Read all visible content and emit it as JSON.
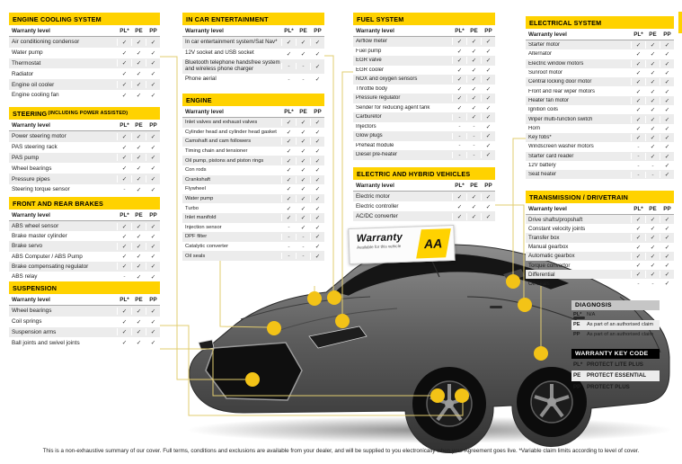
{
  "columns": {
    "label": "Warranty level",
    "cols": [
      "PL*",
      "PE",
      "PP"
    ]
  },
  "marks": {
    "y": "✓",
    "n": "-"
  },
  "colors": {
    "brand_yellow": "#FFD200",
    "dot_yellow": "#F3C317",
    "line_yellow": "#E2CC6F",
    "key_code_header_bg": "#000000",
    "diagnosis_header_bg": "#C6C6C6",
    "check_color": "#3A3A3A"
  },
  "tables": [
    {
      "id": "engine-cooling-system",
      "title": "ENGINE COOLING SYSTEM",
      "rows": [
        {
          "label": "Air conditioning condensor",
          "v": "yyy"
        },
        {
          "label": "Water pump",
          "v": "yyy"
        },
        {
          "label": "Thermostat",
          "v": "yyy"
        },
        {
          "label": "Radiator",
          "v": "yyy"
        },
        {
          "label": "Engine oil cooler",
          "v": "yyy"
        },
        {
          "label": "Engine cooling fan",
          "v": "yyy"
        }
      ]
    },
    {
      "id": "steering",
      "title": "STEERING",
      "suffix": "(INCLUDING POWER ASSISTED)",
      "rows": [
        {
          "label": "Power steering motor",
          "v": "yyy"
        },
        {
          "label": "PAS steering rack",
          "v": "yyy"
        },
        {
          "label": "PAS pump",
          "v": "yyy"
        },
        {
          "label": "Wheel bearings",
          "v": "yyy"
        },
        {
          "label": "Pressure pipes",
          "v": "yyy"
        },
        {
          "label": "Steering torque sensor",
          "v": "nyy"
        }
      ]
    },
    {
      "id": "front-and-rear-brakes",
      "title": "FRONT AND REAR BRAKES",
      "rows": [
        {
          "label": "ABS wheel sensor",
          "v": "yyy"
        },
        {
          "label": "Brake master cylinder",
          "v": "yyy"
        },
        {
          "label": "Brake servo",
          "v": "yyy"
        },
        {
          "label": "ABS Computer / ABS Pump",
          "v": "yyy"
        },
        {
          "label": "Brake compensating regulator",
          "v": "yyy"
        },
        {
          "label": "ABS relay",
          "v": "nyy"
        }
      ]
    },
    {
      "id": "suspension",
      "title": "SUSPENSION",
      "rows": [
        {
          "label": "Wheel bearings",
          "v": "yyy"
        },
        {
          "label": "Coil springs",
          "v": "yyy"
        },
        {
          "label": "Suspension arms",
          "v": "yyy"
        },
        {
          "label": "Ball joints and swivel joints",
          "v": "yyy"
        }
      ]
    },
    {
      "id": "in-car-entertainment",
      "title": "IN CAR ENTERTAINMENT",
      "rows": [
        {
          "label": "In car entertainment system/Sat Nav*",
          "v": "yyy"
        },
        {
          "label": "12V socket and USB socket",
          "v": "yyy"
        },
        {
          "label": "Bluetooth telephone handsfree system and wireless phone charger",
          "v": "nny"
        },
        {
          "label": "Phone aerial",
          "v": "nny"
        }
      ]
    },
    {
      "id": "engine",
      "title": "ENGINE",
      "rows": [
        {
          "label": "Inlet valves and exhaust valves",
          "v": "yyy"
        },
        {
          "label": "Cylinder head and cylinder head gasket",
          "v": "yyy"
        },
        {
          "label": "Camshaft and cam followers",
          "v": "yyy"
        },
        {
          "label": "Timing chain and tensioner",
          "v": "yyy"
        },
        {
          "label": "Oil pump, pistons and piston rings",
          "v": "yyy"
        },
        {
          "label": "Con rods",
          "v": "yyy"
        },
        {
          "label": "Crankshaft",
          "v": "yyy"
        },
        {
          "label": "Flywheel",
          "v": "yyy"
        },
        {
          "label": "Water pump",
          "v": "yyy"
        },
        {
          "label": "Turbo",
          "v": "yyy"
        },
        {
          "label": "Inlet manifold",
          "v": "yyy"
        },
        {
          "label": "Injection sensor",
          "v": "nyy"
        },
        {
          "label": "DPF filter",
          "v": "nny"
        },
        {
          "label": "Catalytic converter",
          "v": "nny"
        },
        {
          "label": "Oil seals",
          "v": "nny"
        }
      ]
    },
    {
      "id": "fuel-system",
      "title": "FUEL SYSTEM",
      "rows": [
        {
          "label": "Airflow meter",
          "v": "yyy"
        },
        {
          "label": "Fuel pump",
          "v": "yyy"
        },
        {
          "label": "EGR valve",
          "v": "yyy"
        },
        {
          "label": "EGR cooler",
          "v": "yyy"
        },
        {
          "label": "NOX and oxygen sensors",
          "v": "yyy"
        },
        {
          "label": "Throttle body",
          "v": "yyy"
        },
        {
          "label": "Pressure regulator",
          "v": "yyy"
        },
        {
          "label": "Sender for reducing agent tank",
          "v": "yyy"
        },
        {
          "label": "Carburetor",
          "v": "nyy"
        },
        {
          "label": "Injectors",
          "v": "nny"
        },
        {
          "label": "Glow plugs",
          "v": "nny"
        },
        {
          "label": "Preheat module",
          "v": "nny"
        },
        {
          "label": "Diesel pre-heater",
          "v": "nny"
        }
      ]
    },
    {
      "id": "electric-and-hybrid-vehicles",
      "title": "ELECTRIC AND HYBRID VEHICLES",
      "rows": [
        {
          "label": "Electric motor",
          "v": "yyy"
        },
        {
          "label": "Electric controller",
          "v": "yyy"
        },
        {
          "label": "AC/DC converter",
          "v": "yyy"
        }
      ]
    },
    {
      "id": "electrical-system",
      "title": "ELECTRICAL SYSTEM",
      "rows": [
        {
          "label": "Starter motor",
          "v": "yyy"
        },
        {
          "label": "Alternator",
          "v": "yyy"
        },
        {
          "label": "Electric window motors",
          "v": "yyy"
        },
        {
          "label": "Sunroof motor",
          "v": "yyy"
        },
        {
          "label": "Central locking door motor",
          "v": "yyy"
        },
        {
          "label": "Front and rear wiper motors",
          "v": "yyy"
        },
        {
          "label": "Heater fan motor",
          "v": "yyy"
        },
        {
          "label": "Ignition coils",
          "v": "yyy"
        },
        {
          "label": "Wiper multi-function switch",
          "v": "yyy"
        },
        {
          "label": "Horn",
          "v": "yyy"
        },
        {
          "label": "Key fobs*",
          "v": "yyy"
        },
        {
          "label": "Windscreen washer motors",
          "v": "nyy"
        },
        {
          "label": "Starter card reader",
          "v": "nyy"
        },
        {
          "label": "12V battery",
          "v": "nny"
        },
        {
          "label": "Seat heater",
          "v": "nny"
        }
      ]
    },
    {
      "id": "transmission-drivetrain",
      "title": "TRANSMISSION / DRIVETRAIN",
      "rows": [
        {
          "label": "Drive shafts/propshaft",
          "v": "yyy"
        },
        {
          "label": "Constant velocity joints",
          "v": "yyy"
        },
        {
          "label": "Transfer box",
          "v": "yyy"
        },
        {
          "label": "Manual gearbox",
          "v": "yyy"
        },
        {
          "label": "Automatic gearbox",
          "v": "yyy"
        },
        {
          "label": "Torque convertor",
          "v": "yyy"
        },
        {
          "label": "Differential",
          "v": "yyy"
        },
        {
          "label": "Oil seals",
          "v": "nny"
        }
      ]
    }
  ],
  "diagnosis": {
    "title": "DIAGNOSIS",
    "rows": [
      {
        "code": "PL*",
        "text": "N/A"
      },
      {
        "code": "PE",
        "text": "As part of an authorised claim"
      },
      {
        "code": "PP",
        "text": "As part of an authorised claim"
      }
    ]
  },
  "key_code": {
    "title": "WARRANTY KEY CODE",
    "rows": [
      {
        "code": "PL*",
        "text": "PROTECT LITE PLUS"
      },
      {
        "code": "PE",
        "text": "PROTECT ESSENTIAL"
      },
      {
        "code": "PP",
        "text": "PROTECT PLUS"
      }
    ]
  },
  "badge": {
    "title": "Warranty",
    "subtitle": "Available for this vehicle",
    "logo": "AA"
  },
  "footer": "This is a non-exhaustive summary of our cover. Full terms, conditions and exclusions are available from your dealer, and will be supplied to you electronically when your Agreement goes live. *Variable claim limits according to level of cover."
}
